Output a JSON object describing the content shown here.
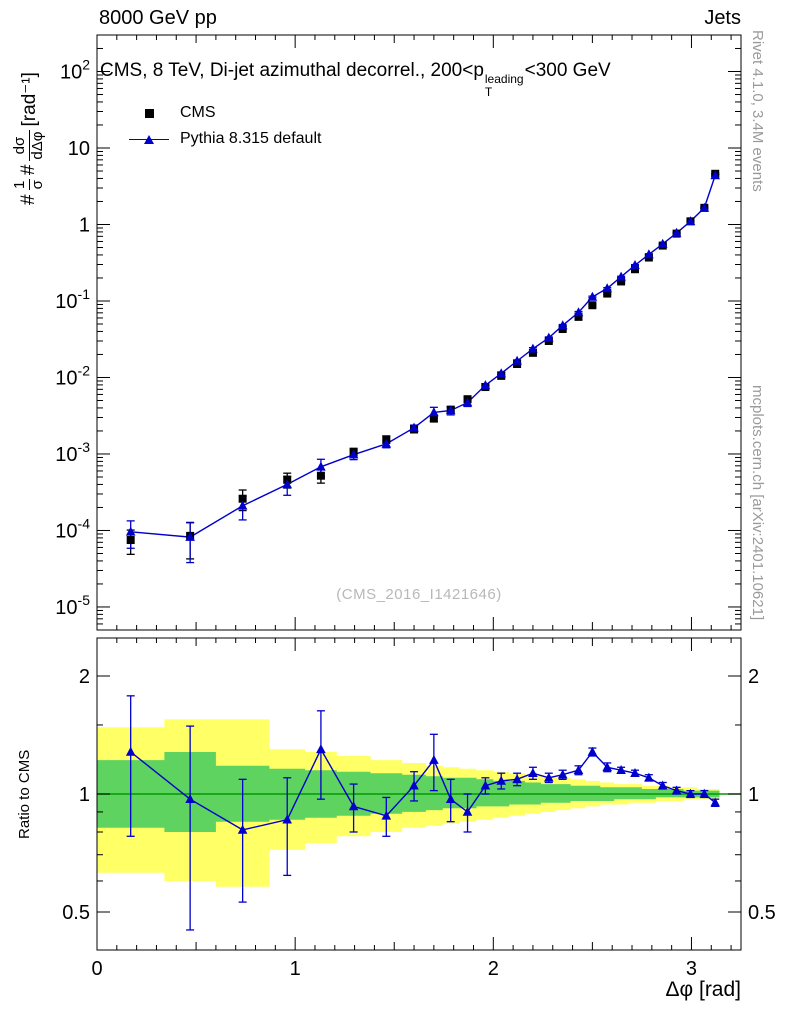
{
  "header": {
    "left": "8000 GeV pp",
    "right": "Jets"
  },
  "title": {
    "prefix": "CMS, 8 TeV, Di-jet azimuthal decorrel., 200<p",
    "sup": "leading",
    "sub": "T",
    "suffix": "<300 GeV"
  },
  "legend": {
    "items": [
      {
        "label": "CMS",
        "marker": "square",
        "color": "#000000"
      },
      {
        "label": "Pythia 8.315 default",
        "marker": "triangle-line",
        "color": "#0000cc"
      }
    ]
  },
  "watermark": "(CMS_2016_I1421646)",
  "side_labels": {
    "top_right": "Rivet 4.1.0,  3.4M events",
    "bottom_right": "mcplots.cern.ch [arXiv:2401.10621]"
  },
  "axis_labels": {
    "x": "Δφ [rad]",
    "ratio_y": "Ratio to CMS",
    "main_y": {
      "hash1": "#",
      "frac1_num": "1",
      "frac1_den": "σ",
      "hash2": "#",
      "frac2_num": "dσ",
      "frac2_den": "dΔφ",
      "units": "[rad⁻¹]"
    }
  },
  "colors": {
    "cms": "#000000",
    "pythia": "#0000cc",
    "band_outer": "#ffff66",
    "band_inner": "#5fd35f",
    "unity_line": "#009900",
    "frame": "#000000",
    "side_text": "#9a9a9a",
    "watermark": "#b8b8b8"
  },
  "chart_data": {
    "type": "line",
    "title": "CMS, 8 TeV, Di-jet azimuthal decorrel., 200<pT^leading<300 GeV",
    "xlabel": "Δφ [rad]",
    "ylabel": "1/σ dσ/dΔφ [rad⁻¹]",
    "legend_position": "top-left",
    "grid": false,
    "xlim": [
      0,
      3.25
    ],
    "xticks": [
      0,
      1,
      2,
      3
    ],
    "x": [
      0.17,
      0.47,
      0.735,
      0.96,
      1.13,
      1.295,
      1.46,
      1.6,
      1.7,
      1.785,
      1.87,
      1.96,
      2.04,
      2.12,
      2.2,
      2.28,
      2.35,
      2.43,
      2.5,
      2.575,
      2.645,
      2.715,
      2.785,
      2.855,
      2.925,
      2.995,
      3.065,
      3.12
    ],
    "main": {
      "yscale": "log",
      "ylim": [
        5e-06,
        300
      ],
      "series": [
        {
          "name": "CMS",
          "marker": "square",
          "color": "#000000",
          "values": [
            7.5e-05,
            8.5e-05,
            0.00026,
            0.00046,
            0.00052,
            0.00105,
            0.00155,
            0.0021,
            0.0029,
            0.0038,
            0.0052,
            0.0075,
            0.0105,
            0.015,
            0.021,
            0.03,
            0.043,
            0.062,
            0.088,
            0.125,
            0.18,
            0.26,
            0.37,
            0.53,
            0.76,
            1.1,
            1.65,
            4.6
          ],
          "yerr_frac": [
            0.35,
            0.5,
            0.3,
            0.22,
            0.2,
            0.13,
            0.11,
            0.1,
            0.08,
            0.07,
            0.06,
            0.05,
            0.05,
            0.04,
            0.04,
            0.04,
            0.03,
            0.03,
            0.03,
            0.03,
            0.02,
            0.02,
            0.02,
            0.02,
            0.02,
            0.02,
            0.02,
            0.02
          ]
        },
        {
          "name": "Pythia 8.315 default",
          "marker": "triangle",
          "color": "#0000cc",
          "values": [
            9.6e-05,
            8.2e-05,
            0.00021,
            0.0004,
            0.00068,
            0.00098,
            0.00136,
            0.0022,
            0.0035,
            0.0037,
            0.0047,
            0.0079,
            0.0113,
            0.0164,
            0.0237,
            0.033,
            0.048,
            0.071,
            0.113,
            0.146,
            0.207,
            0.294,
            0.407,
            0.557,
            0.775,
            1.1,
            1.65,
            4.37
          ]
        }
      ]
    },
    "ratio": {
      "label": "Ratio to CMS",
      "yscale": "log",
      "ylim": [
        0.4,
        2.5
      ],
      "yticks": [
        0.5,
        1,
        2
      ],
      "bin_edges": [
        0,
        0.34,
        0.6,
        0.87,
        1.05,
        1.21,
        1.38,
        1.54,
        1.66,
        1.745,
        1.83,
        1.915,
        2.0,
        2.08,
        2.16,
        2.24,
        2.315,
        2.39,
        2.465,
        2.54,
        2.61,
        2.68,
        2.75,
        2.82,
        2.89,
        2.96,
        3.03,
        3.1,
        3.1416
      ],
      "values": [
        1.28,
        0.97,
        0.81,
        0.86,
        1.3,
        0.93,
        0.88,
        1.05,
        1.22,
        0.97,
        0.9,
        1.05,
        1.08,
        1.09,
        1.13,
        1.1,
        1.12,
        1.15,
        1.28,
        1.17,
        1.15,
        1.13,
        1.1,
        1.05,
        1.02,
        1.0,
        1.0,
        0.95
      ],
      "yerr": [
        0.5,
        0.52,
        0.28,
        0.24,
        0.33,
        0.13,
        0.1,
        0.09,
        0.2,
        0.12,
        0.1,
        0.05,
        0.05,
        0.04,
        0.04,
        0.03,
        0.03,
        0.03,
        0.03,
        0.03,
        0.02,
        0.02,
        0.02,
        0.02,
        0.02,
        0.02,
        0.02,
        0.02
      ],
      "band_outer": {
        "lo": [
          0.63,
          0.6,
          0.58,
          0.72,
          0.75,
          0.78,
          0.8,
          0.82,
          0.83,
          0.84,
          0.85,
          0.86,
          0.87,
          0.88,
          0.89,
          0.9,
          0.91,
          0.92,
          0.93,
          0.94,
          0.94,
          0.95,
          0.95,
          0.96,
          0.96,
          0.97,
          0.97,
          0.97
        ],
        "hi": [
          1.48,
          1.55,
          1.55,
          1.3,
          1.28,
          1.25,
          1.22,
          1.2,
          1.18,
          1.17,
          1.16,
          1.15,
          1.14,
          1.13,
          1.12,
          1.11,
          1.1,
          1.09,
          1.08,
          1.07,
          1.06,
          1.06,
          1.05,
          1.05,
          1.04,
          1.04,
          1.03,
          1.03
        ]
      },
      "band_inner": {
        "lo": [
          0.82,
          0.8,
          0.85,
          0.86,
          0.87,
          0.88,
          0.89,
          0.9,
          0.91,
          0.92,
          0.92,
          0.93,
          0.93,
          0.94,
          0.94,
          0.95,
          0.95,
          0.96,
          0.96,
          0.96,
          0.97,
          0.97,
          0.97,
          0.98,
          0.98,
          0.98,
          0.98,
          0.98
        ],
        "hi": [
          1.22,
          1.28,
          1.18,
          1.16,
          1.15,
          1.14,
          1.13,
          1.12,
          1.11,
          1.1,
          1.1,
          1.09,
          1.08,
          1.08,
          1.07,
          1.06,
          1.06,
          1.05,
          1.05,
          1.04,
          1.04,
          1.04,
          1.03,
          1.03,
          1.03,
          1.02,
          1.02,
          1.02
        ]
      }
    }
  }
}
